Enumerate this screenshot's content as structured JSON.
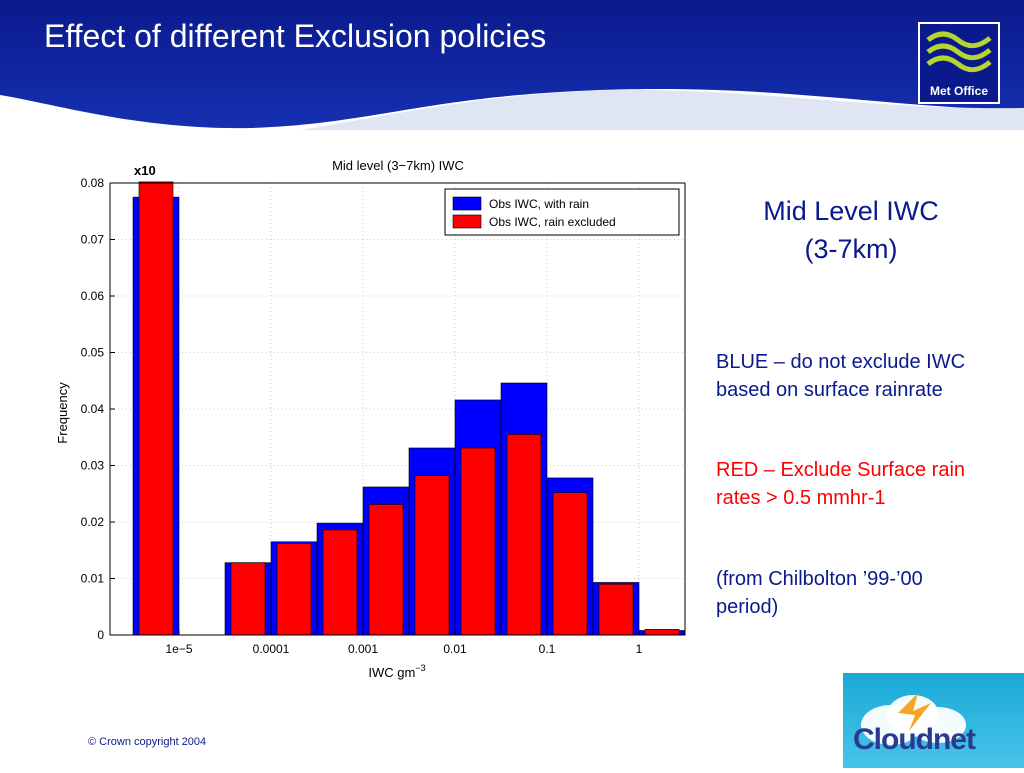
{
  "slide": {
    "title": "Effect of different Exclusion policies",
    "logo_text": "Met Office",
    "side_title_line1": "Mid Level IWC",
    "side_title_line2": "(3-7km)",
    "para_blue": "BLUE – do not exclude IWC based on surface rainrate",
    "para_red": "RED – Exclude Surface rain rates  > 0.5 mmhr-1",
    "para_note": "(from Chilbolton ’99-’00 period)",
    "copyright": "© Crown copyright 2004",
    "cloudnet_text": "Cloudnet"
  },
  "colors": {
    "header_navy": "#0a1a8c",
    "blue_series": "#0000ff",
    "red_series": "#ff0000",
    "logo_green": "#b7d432"
  },
  "chart_data": {
    "type": "bar",
    "title": "Mid level (3−7km) IWC",
    "xlabel": "IWC gm",
    "xlabel_sup": "−3",
    "ylabel": "Frequency",
    "multiplier_label": "x10",
    "ylim": [
      0,
      0.08
    ],
    "yticks": [
      "0",
      "0.01",
      "0.02",
      "0.03",
      "0.04",
      "0.05",
      "0.06",
      "0.07",
      "0.08"
    ],
    "xtick_labels": [
      "1e−5",
      "0.0001",
      "0.001",
      "0.01",
      "0.1",
      "1"
    ],
    "x_scale": "log",
    "grid": true,
    "legend_position": "top-right",
    "bins_log10_start": [
      -5.5,
      -4.5,
      -4.0,
      -3.5,
      -3.0,
      -2.5,
      -2.0,
      -1.5,
      -1.0,
      -0.5,
      0.0
    ],
    "bins_log10_end": [
      -5.0,
      -4.0,
      -3.5,
      -3.0,
      -2.5,
      -2.0,
      -1.5,
      -1.0,
      -0.5,
      0.0,
      0.5
    ],
    "series": [
      {
        "name": "Obs IWC, with rain",
        "color": "#0000ff",
        "values": [
          0.0775,
          0.0128,
          0.0165,
          0.0198,
          0.0262,
          0.0331,
          0.0416,
          0.0446,
          0.0278,
          0.0093,
          0.0008
        ]
      },
      {
        "name": "Obs IWC, rain excluded",
        "color": "#ff0000",
        "values": [
          0.0802,
          0.0128,
          0.0162,
          0.0186,
          0.0231,
          0.0282,
          0.0331,
          0.0355,
          0.0252,
          0.009,
          0.001
        ]
      }
    ]
  }
}
